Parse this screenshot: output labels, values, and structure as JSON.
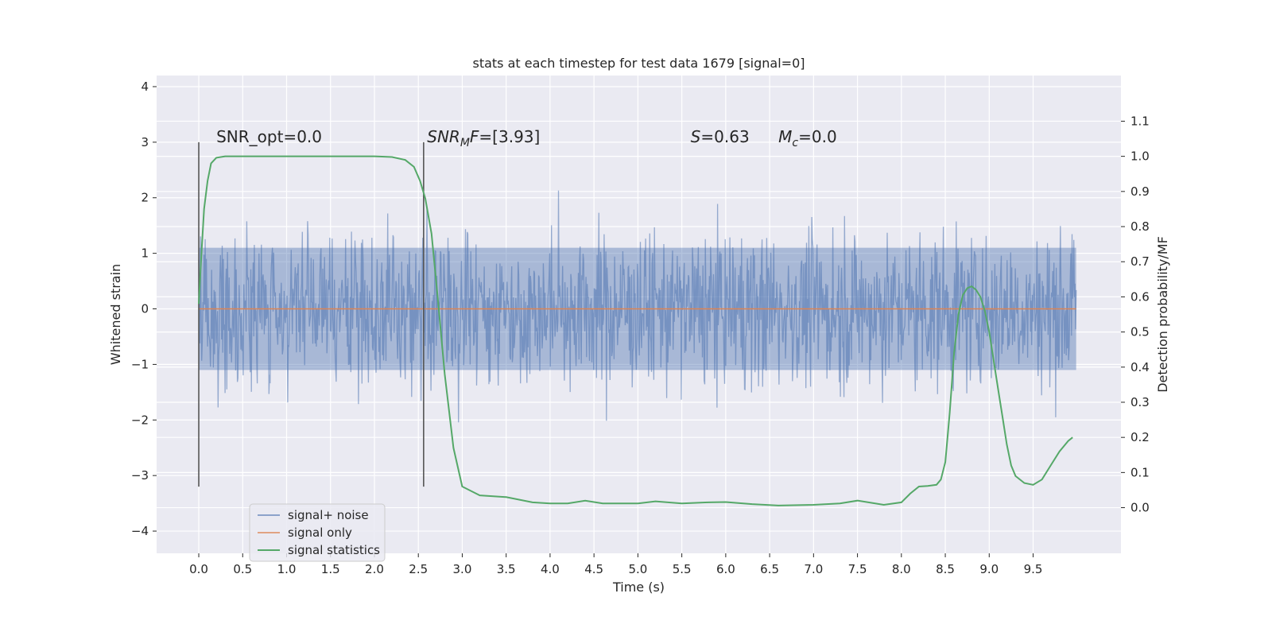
{
  "chart_data": {
    "type": "line",
    "title": "stats at each timestep for test data 1679 [signal=0]",
    "xlabel": "Time (s)",
    "ylabel": "Whitened strain",
    "y2label": "Detection probability/MF",
    "xlim": [
      -0.48,
      10.5
    ],
    "ylim": [
      -4.4,
      4.2
    ],
    "y2lim": [
      -0.13,
      1.23
    ],
    "xticks": [
      0.0,
      0.5,
      1.0,
      1.5,
      2.0,
      2.5,
      3.0,
      3.5,
      4.0,
      4.5,
      5.0,
      5.5,
      6.0,
      6.5,
      7.0,
      7.5,
      8.0,
      8.5,
      9.0,
      9.5
    ],
    "xtick_labels": [
      "0.0",
      "0.5",
      "1.0",
      "1.5",
      "2.0",
      "2.5",
      "3.0",
      "3.5",
      "4.0",
      "4.5",
      "5.0",
      "5.5",
      "6.0",
      "6.5",
      "7.0",
      "7.5",
      "8.0",
      "8.5",
      "9.0",
      "9.5"
    ],
    "yticks": [
      4,
      3,
      2,
      1,
      0,
      -1,
      -2,
      -3,
      -4
    ],
    "ytick_labels": [
      "4",
      "3",
      "2",
      "1",
      "0",
      "−1",
      "−2",
      "−3",
      "−4"
    ],
    "y2ticks": [
      1.1,
      1.0,
      0.9,
      0.8,
      0.7,
      0.6,
      0.5,
      0.4,
      0.3,
      0.2,
      0.1,
      0.0
    ],
    "y2tick_labels": [
      "1.1",
      "1.0",
      "0.9",
      "0.8",
      "0.7",
      "0.6",
      "0.5",
      "0.4",
      "0.3",
      "0.2",
      "0.1",
      "0.0"
    ],
    "grid": true,
    "legend_position": "lower-left",
    "series": [
      {
        "name": "signal+ noise",
        "color": "#4c72b0",
        "style": "noise band, amplitude ~1.1 core with spikes to about ±3",
        "x_range": [
          0.0,
          9.99
        ]
      },
      {
        "name": "signal only",
        "color": "#dd8452",
        "x": [
          0.0,
          9.99
        ],
        "values": [
          0.0,
          0.0
        ]
      },
      {
        "name": "signal statistics",
        "color": "#55a868",
        "axis": "right",
        "x": [
          0.0,
          0.03,
          0.06,
          0.1,
          0.14,
          0.2,
          0.3,
          0.5,
          1.0,
          1.5,
          2.0,
          2.2,
          2.35,
          2.45,
          2.52,
          2.58,
          2.65,
          2.72,
          2.8,
          2.9,
          3.0,
          3.2,
          3.5,
          3.8,
          4.0,
          4.2,
          4.4,
          4.6,
          5.0,
          5.2,
          5.5,
          5.8,
          6.0,
          6.3,
          6.6,
          7.0,
          7.3,
          7.5,
          7.8,
          8.0,
          8.1,
          8.2,
          8.3,
          8.4,
          8.45,
          8.5,
          8.55,
          8.6,
          8.65,
          8.7,
          8.75,
          8.8,
          8.85,
          8.9,
          8.95,
          9.0,
          9.05,
          9.1,
          9.15,
          9.2,
          9.25,
          9.3,
          9.4,
          9.5,
          9.6,
          9.7,
          9.8,
          9.9,
          9.95
        ],
        "values": [
          0.58,
          0.72,
          0.85,
          0.93,
          0.98,
          0.996,
          1.0,
          1.0,
          1.0,
          1.0,
          1.0,
          0.998,
          0.99,
          0.97,
          0.93,
          0.88,
          0.78,
          0.6,
          0.38,
          0.17,
          0.06,
          0.035,
          0.03,
          0.015,
          0.012,
          0.012,
          0.02,
          0.012,
          0.012,
          0.018,
          0.012,
          0.015,
          0.016,
          0.01,
          0.006,
          0.008,
          0.012,
          0.02,
          0.008,
          0.015,
          0.04,
          0.06,
          0.062,
          0.065,
          0.08,
          0.13,
          0.27,
          0.44,
          0.55,
          0.605,
          0.625,
          0.63,
          0.62,
          0.6,
          0.56,
          0.5,
          0.42,
          0.34,
          0.26,
          0.18,
          0.12,
          0.09,
          0.07,
          0.065,
          0.08,
          0.12,
          0.16,
          0.19,
          0.2
        ]
      }
    ],
    "vlines": [
      {
        "x": 0.0,
        "y": [
          -3.2,
          3.0
        ],
        "color": "#555555"
      },
      {
        "x": 2.56,
        "y": [
          -3.2,
          3.0
        ],
        "color": "#555555"
      }
    ],
    "annotations": [
      {
        "text": "SNR_opt=0.0",
        "x": 0.2,
        "y": 3.0,
        "math": false
      },
      {
        "main": "SNR",
        "sub": "M",
        "rest": "F=[3.93]",
        "x": 2.6,
        "y": 3.0,
        "math": true
      },
      {
        "main": "S",
        "sub": "",
        "rest": "=0.63",
        "x": 5.6,
        "y": 3.0,
        "math": true
      },
      {
        "main": "M",
        "sub": "c",
        "rest": "=0.0",
        "x": 6.6,
        "y": 3.0,
        "math": true
      }
    ]
  },
  "colors": {
    "axes_bg": "#eaeaf2",
    "grid": "#ffffff",
    "noise": "#4c72b0",
    "signal": "#dd8452",
    "stats": "#55a868",
    "text": "#262626"
  }
}
